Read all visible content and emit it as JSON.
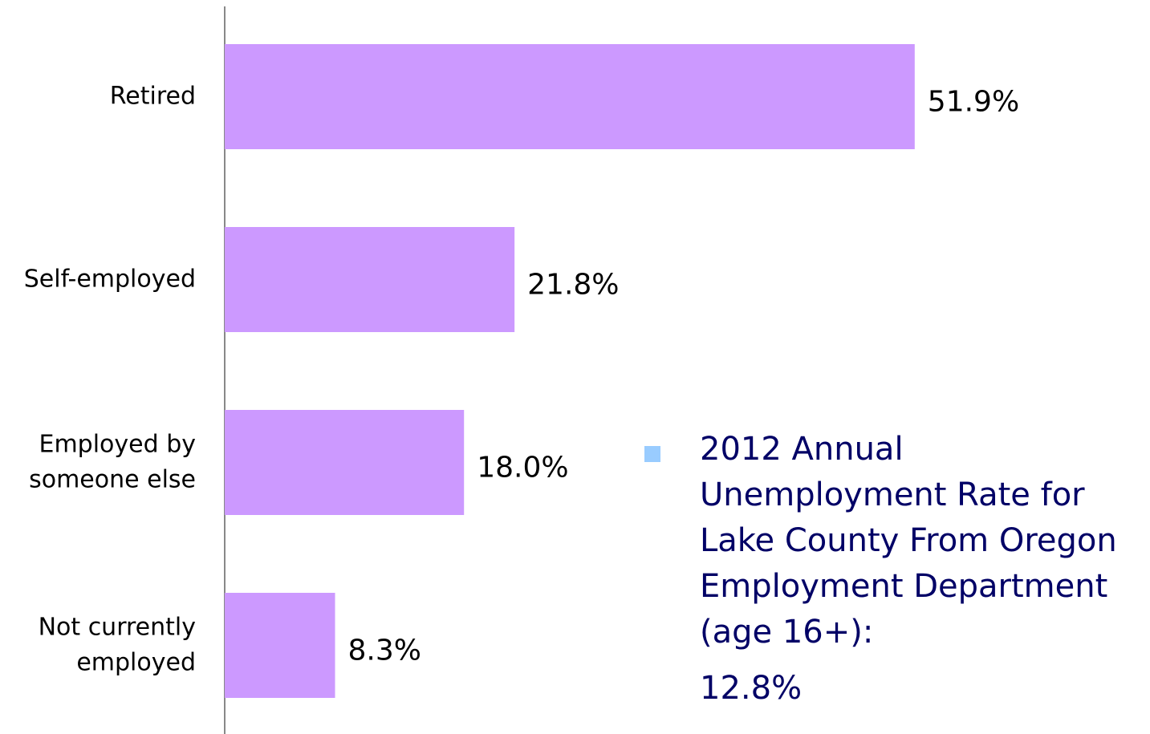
{
  "chart_data": {
    "type": "hbar",
    "categories": [
      "Retired",
      "Self-employed",
      "Employed by\nsomeone else",
      "Not currently\nemployed"
    ],
    "values": [
      51.9,
      21.8,
      18.0,
      8.3
    ],
    "value_labels": [
      "51.9%",
      "21.8%",
      "18.0%",
      "8.3%"
    ],
    "color": "#cc99ff",
    "xlim": [
      0,
      60
    ],
    "annotation": {
      "text": "2012 Annual\nUnemployment Rate for\nLake County From Oregon\nEmployment Department\n(age 16+):",
      "value_label": "12.8%",
      "color": "#99ccff"
    }
  }
}
